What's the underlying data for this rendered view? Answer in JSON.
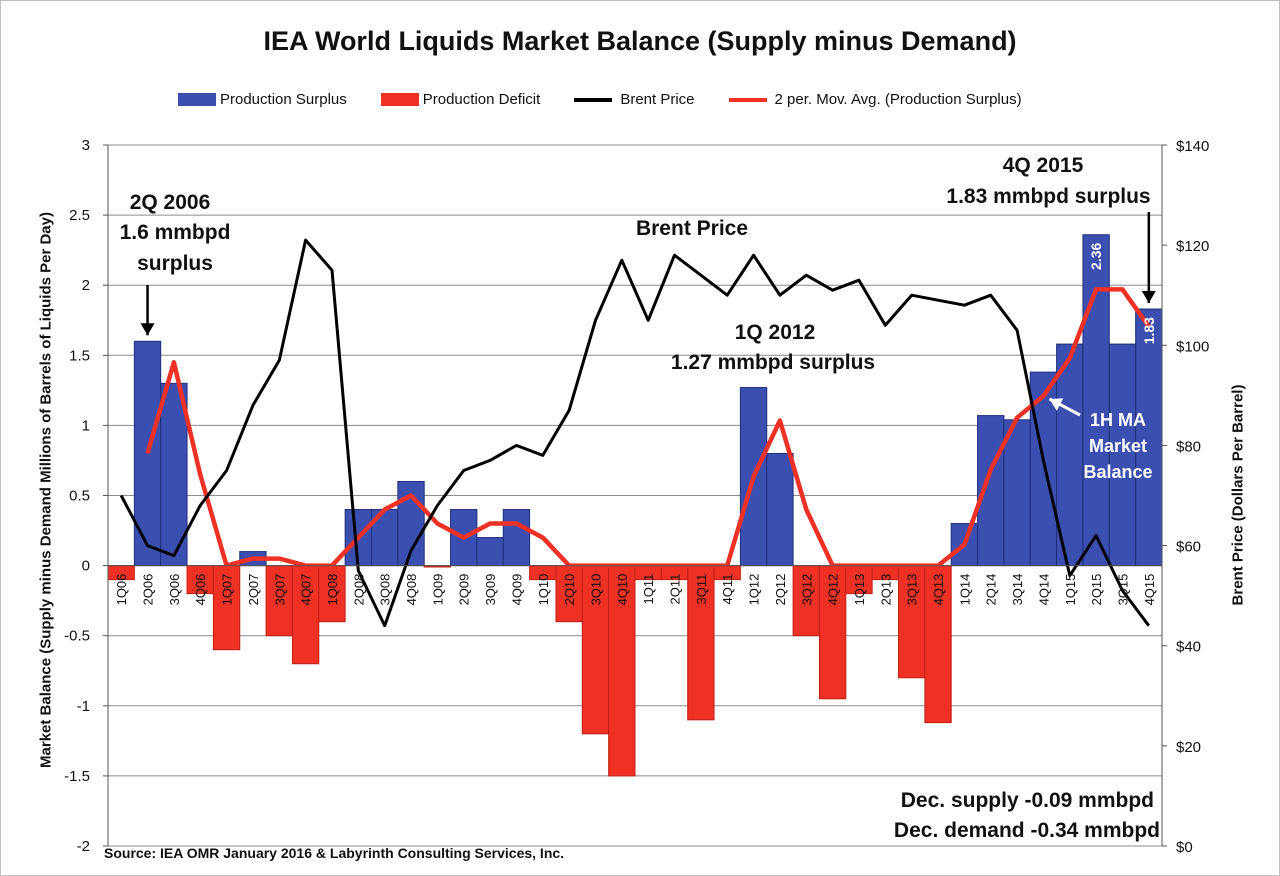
{
  "chart_data": {
    "type": "bar",
    "title": "IEA World Liquids Market Balance (Supply minus Demand)",
    "ylabel": "Market Balance (Supply minus Demand Millions of Barrels of Liquids Per Day)",
    "y2label": "Brent Price (Dollars Per Barrel)",
    "ylim": [
      -2,
      3
    ],
    "y2lim": [
      0,
      140
    ],
    "yticks": [
      "3",
      "2.5",
      "2",
      "1.5",
      "1",
      "0.5",
      "0",
      "-0.5",
      "-1",
      "-1.5",
      "-2"
    ],
    "y2ticks": [
      "$140",
      "$120",
      "$100",
      "$80",
      "$60",
      "$40",
      "$20",
      "$0"
    ],
    "categories": [
      "1Q06",
      "2Q06",
      "3Q06",
      "4Q06",
      "1Q07",
      "2Q07",
      "3Q07",
      "4Q07",
      "1Q08",
      "2Q08",
      "3Q08",
      "4Q08",
      "1Q09",
      "2Q09",
      "3Q09",
      "4Q09",
      "1Q10",
      "2Q10",
      "3Q10",
      "4Q10",
      "1Q11",
      "2Q11",
      "3Q11",
      "4Q11",
      "1Q12",
      "2Q12",
      "3Q12",
      "4Q12",
      "1Q13",
      "2Q13",
      "3Q13",
      "4Q13",
      "1Q14",
      "2Q14",
      "3Q14",
      "4Q14",
      "1Q15",
      "2Q15",
      "3Q15",
      "4Q15"
    ],
    "series": [
      {
        "name": "Production Surplus",
        "type": "bar",
        "color": "#3a4fb0",
        "values": [
          null,
          1.6,
          1.3,
          null,
          null,
          0.1,
          null,
          null,
          null,
          0.4,
          0.4,
          0.6,
          null,
          0.4,
          0.2,
          0.4,
          null,
          null,
          null,
          null,
          null,
          null,
          null,
          null,
          1.27,
          0.8,
          null,
          null,
          null,
          null,
          null,
          null,
          0.3,
          1.07,
          1.04,
          1.38,
          1.58,
          2.36,
          1.58,
          1.83
        ]
      },
      {
        "name": "Production Deficit",
        "type": "bar",
        "color": "#ee3124",
        "values": [
          -0.1,
          null,
          null,
          -0.2,
          -0.6,
          null,
          -0.5,
          -0.7,
          -0.4,
          null,
          null,
          null,
          -0.01,
          null,
          null,
          null,
          -0.1,
          -0.4,
          -1.2,
          -1.5,
          -0.1,
          -0.1,
          -1.1,
          -0.1,
          null,
          null,
          -0.5,
          -0.95,
          -0.2,
          -0.1,
          -0.8,
          -1.12,
          null,
          null,
          null,
          null,
          null,
          null,
          null,
          null
        ]
      },
      {
        "name": "Brent Price",
        "type": "line",
        "axis": "right",
        "color": "#000000",
        "values": [
          70,
          60,
          58,
          68,
          75,
          88,
          97,
          121,
          115,
          55,
          44,
          59,
          68,
          75,
          77,
          80,
          78,
          87,
          105,
          117,
          105,
          118,
          114,
          110,
          118,
          110,
          114,
          111,
          113,
          104,
          110,
          109,
          108,
          110,
          103,
          77,
          54,
          62,
          51,
          44
        ]
      },
      {
        "name": "2 per. Mov. Avg. (Production Surplus)",
        "type": "line",
        "color": "#ee3124",
        "values": [
          null,
          0.8,
          1.45,
          0.65,
          0.0,
          0.05,
          0.05,
          0.0,
          0.0,
          0.2,
          0.4,
          0.5,
          0.3,
          0.2,
          0.3,
          0.3,
          0.2,
          0.0,
          0.0,
          0.0,
          0.0,
          0.0,
          0.0,
          0.0,
          0.635,
          1.035,
          0.4,
          0.0,
          0.0,
          0.0,
          0.0,
          0.0,
          0.15,
          0.685,
          1.055,
          1.21,
          1.48,
          1.97,
          1.97,
          1.705
        ]
      }
    ],
    "data_labels": {
      "2Q15": "2.36",
      "4Q15": "1.83"
    },
    "legend": "top",
    "grid": true,
    "annotations": {
      "a2q2006_l1": "2Q 2006",
      "a2q2006_l2": "1.6 mmbpd",
      "a2q2006_l3": "surplus",
      "brent": "Brent Price",
      "a1q2012_l1": "1Q 2012",
      "a1q2012_l2": "1.27 mmbpd surplus",
      "a4q2015_l1": "4Q 2015",
      "a4q2015_l2": "1.83 mmbpd surplus",
      "ma_l1": "1H MA",
      "ma_l2": "Market",
      "ma_l3": "Balance",
      "dec_supply": "Dec. supply -0.09 mmbpd",
      "dec_demand": "Dec. demand -0.34 mmbpd"
    },
    "source": "Source:  IEA OMR January 2016 & Labyrinth Consulting Services, Inc."
  }
}
